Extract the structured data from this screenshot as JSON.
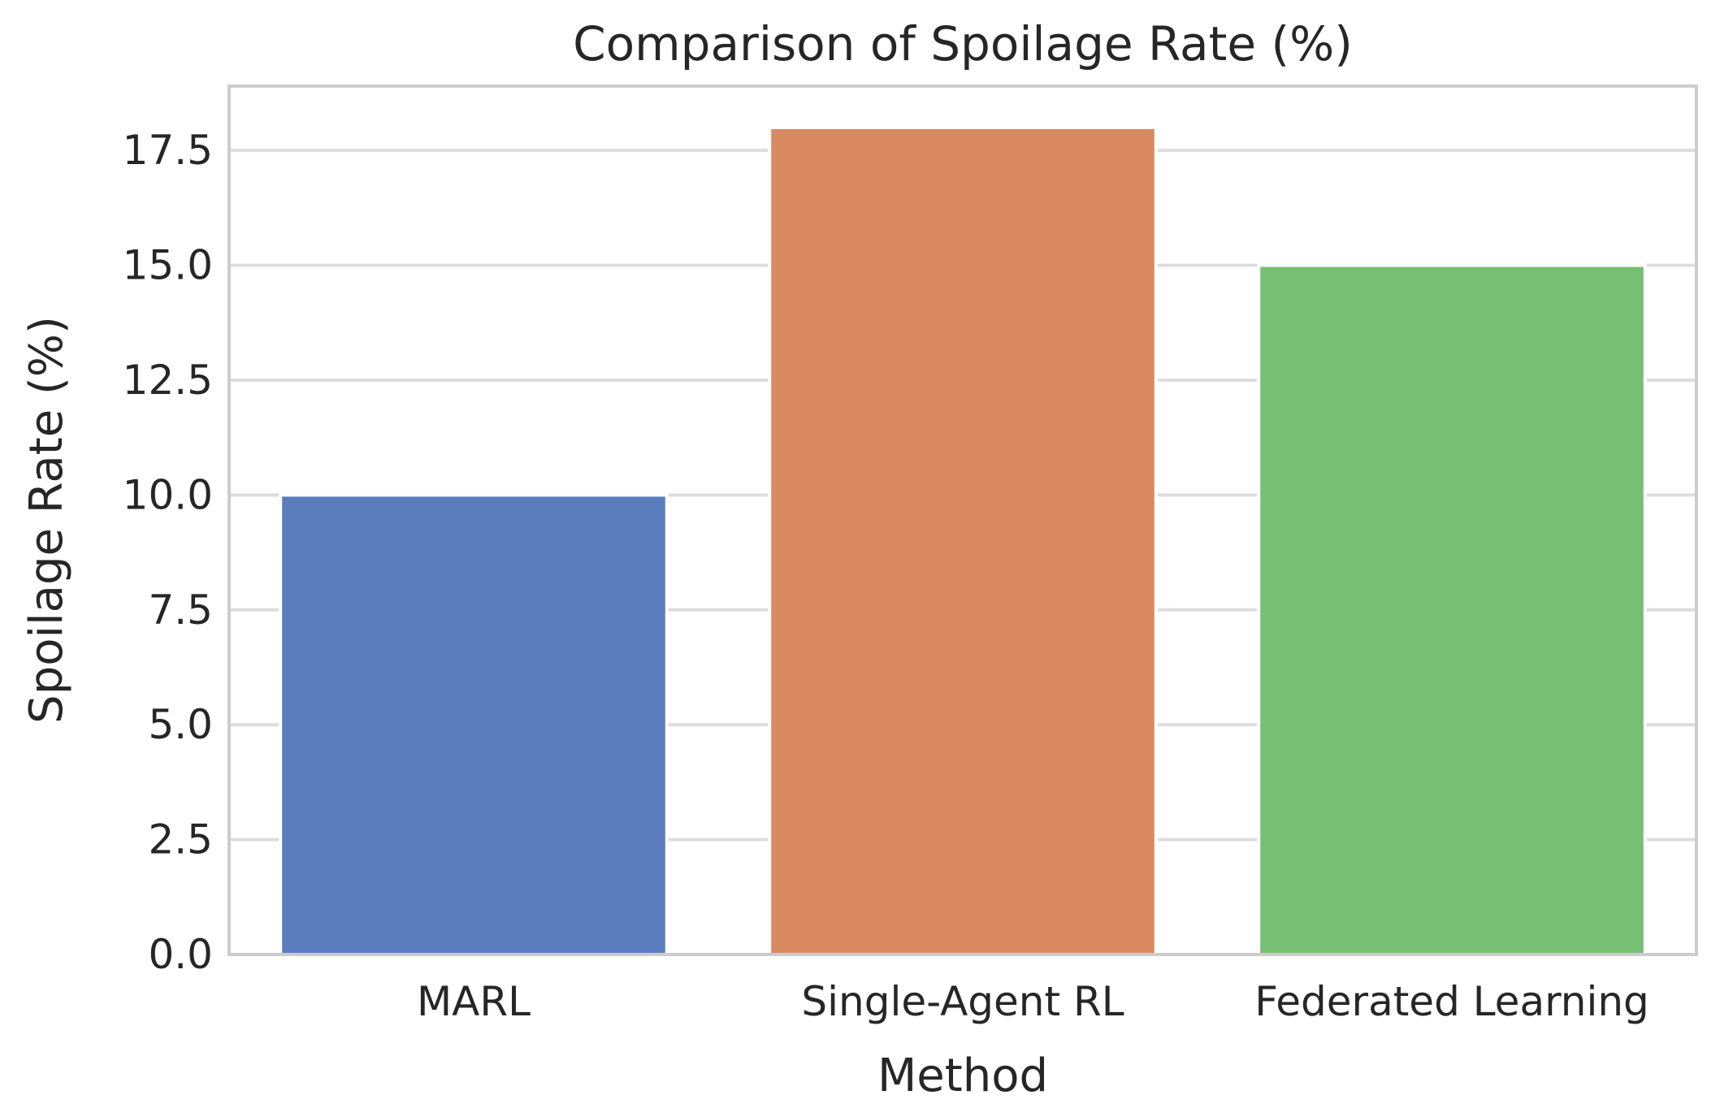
{
  "chart_data": {
    "type": "bar",
    "title": "Comparison of Spoilage Rate (%)",
    "xlabel": "Method",
    "ylabel": "Spoilage Rate (%)",
    "categories": [
      "MARL",
      "Single-Agent RL",
      "Federated Learning"
    ],
    "values": [
      10.0,
      18.0,
      15.0
    ],
    "colors": [
      "#5b7dbd",
      "#d98a61",
      "#77bf72"
    ],
    "ylim": [
      0,
      18.9
    ],
    "yticks": [
      0.0,
      2.5,
      5.0,
      7.5,
      10.0,
      12.5,
      15.0,
      17.5
    ],
    "ytick_labels": [
      "0.0",
      "2.5",
      "5.0",
      "7.5",
      "10.0",
      "12.5",
      "15.0",
      "17.5"
    ],
    "grid": true,
    "grid_color": "#dddddd",
    "frame_color": "#cccccc",
    "background": "#ffffff"
  }
}
